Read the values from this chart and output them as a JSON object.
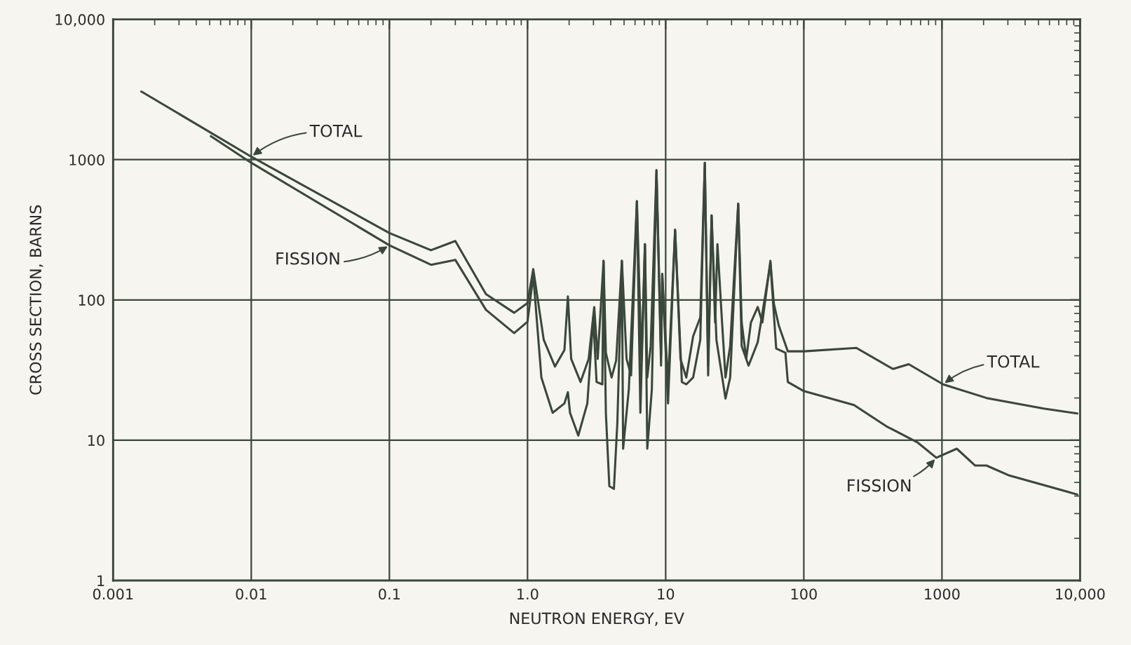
{
  "chart_data": {
    "type": "line",
    "xlabel": "NEUTRON ENERGY, EV",
    "ylabel": "CROSS SECTION, BARNS",
    "log": "xy",
    "grid": true,
    "legend": false,
    "marker": "none",
    "line_style": "solid",
    "xlim": [
      0.001,
      10000
    ],
    "ylim": [
      1,
      10000
    ],
    "xticks": [
      {
        "value": 0.001,
        "label": "0.001"
      },
      {
        "value": 0.01,
        "label": "0.01"
      },
      {
        "value": 0.1,
        "label": "0.1"
      },
      {
        "value": 1,
        "label": "1.0"
      },
      {
        "value": 10,
        "label": "10"
      },
      {
        "value": 100,
        "label": "100"
      },
      {
        "value": 1000,
        "label": "1000"
      },
      {
        "value": 10000,
        "label": "10,000"
      }
    ],
    "yticks": [
      {
        "value": 1,
        "label": "1"
      },
      {
        "value": 10,
        "label": "10"
      },
      {
        "value": 100,
        "label": "100"
      },
      {
        "value": 1000,
        "label": "1000"
      },
      {
        "value": 10000,
        "label": "10,000"
      }
    ],
    "series": [
      {
        "color": "#3a473b",
        "x": [
          0.0016,
          0.01,
          0.1,
          0.2,
          0.3,
          0.5,
          0.8,
          1.0,
          1.1,
          1.31,
          1.58,
          1.85,
          1.96,
          2.07,
          2.42,
          2.77,
          3.04,
          3.22,
          3.55,
          3.69,
          4.06,
          4.38,
          4.82,
          5.21,
          5.62,
          6.19,
          6.68,
          7.08,
          7.36,
          7.79,
          8.58,
          9.26,
          9.44,
          10.4,
          11.7,
          12.8,
          14.1,
          15.8,
          17.8,
          19.2,
          20.3,
          21.5,
          22.8,
          23.7,
          25.6,
          27.1,
          29.3,
          33.5,
          35.5,
          38.3,
          41.4,
          46.4,
          50.1,
          57.3,
          60.7,
          65.8,
          76.6,
          100,
          240,
          442,
          575,
          1020,
          2100,
          5450,
          9550
        ],
        "values": [
          3060,
          1050,
          300,
          226,
          263,
          110,
          81,
          95,
          166,
          52,
          33.5,
          44,
          106,
          38,
          26,
          38,
          89,
          38,
          190,
          42,
          28,
          37,
          190,
          38,
          29,
          505,
          37,
          250,
          28,
          47,
          840,
          40,
          153,
          25,
          316,
          38,
          28,
          55,
          75,
          950,
          34,
          400,
          69,
          250,
          69,
          28,
          47,
          485,
          69,
          38,
          69,
          89,
          69,
          190,
          94,
          66,
          43,
          43,
          45.5,
          32.2,
          34.8,
          25,
          20,
          16.8,
          15.5
        ]
      },
      {
        "color": "#3a473b",
        "x": [
          0.0051,
          0.01,
          0.1,
          0.2,
          0.3,
          0.5,
          0.8,
          1.0,
          1.1,
          1.26,
          1.52,
          1.85,
          1.96,
          2.03,
          2.33,
          2.71,
          2.99,
          3.16,
          3.48,
          3.55,
          3.69,
          3.91,
          4.22,
          4.47,
          4.82,
          4.92,
          5.41,
          6.19,
          6.56,
          7.08,
          7.36,
          7.94,
          8.58,
          9.26,
          9.44,
          10.4,
          11.7,
          13.1,
          14.1,
          15.8,
          17.8,
          19.2,
          20.3,
          21.5,
          23.3,
          27.1,
          29.3,
          33.5,
          35.5,
          39.8,
          46.4,
          57.3,
          63.1,
          73.6,
          76.6,
          100,
          231,
          394,
          670,
          910,
          1280,
          1740,
          2100,
          3080,
          9550
        ],
        "values": [
          1470,
          950,
          245,
          178,
          193,
          85,
          58,
          70,
          150,
          28,
          15.7,
          18.3,
          22,
          15.7,
          10.8,
          18.3,
          75,
          26,
          25,
          190,
          15.7,
          4.7,
          4.5,
          13.4,
          190,
          8.7,
          23,
          505,
          15.7,
          250,
          8.7,
          23,
          840,
          34,
          153,
          18.3,
          316,
          26,
          25,
          28,
          52,
          950,
          29,
          400,
          52,
          19.8,
          28,
          485,
          47,
          34,
          50,
          183,
          45,
          42,
          26,
          22.4,
          17.8,
          12.6,
          9.6,
          7.5,
          8.7,
          6.6,
          6.6,
          5.6,
          4.1
        ]
      }
    ],
    "annotations": [
      {
        "text": "TOTAL",
        "x": 0.01,
        "y": 1050
      },
      {
        "text": "FISSION",
        "x": 0.1,
        "y": 245
      },
      {
        "text": "TOTAL",
        "x": 1020,
        "y": 25
      },
      {
        "text": "FISSION",
        "x": 910,
        "y": 7.5
      }
    ]
  }
}
